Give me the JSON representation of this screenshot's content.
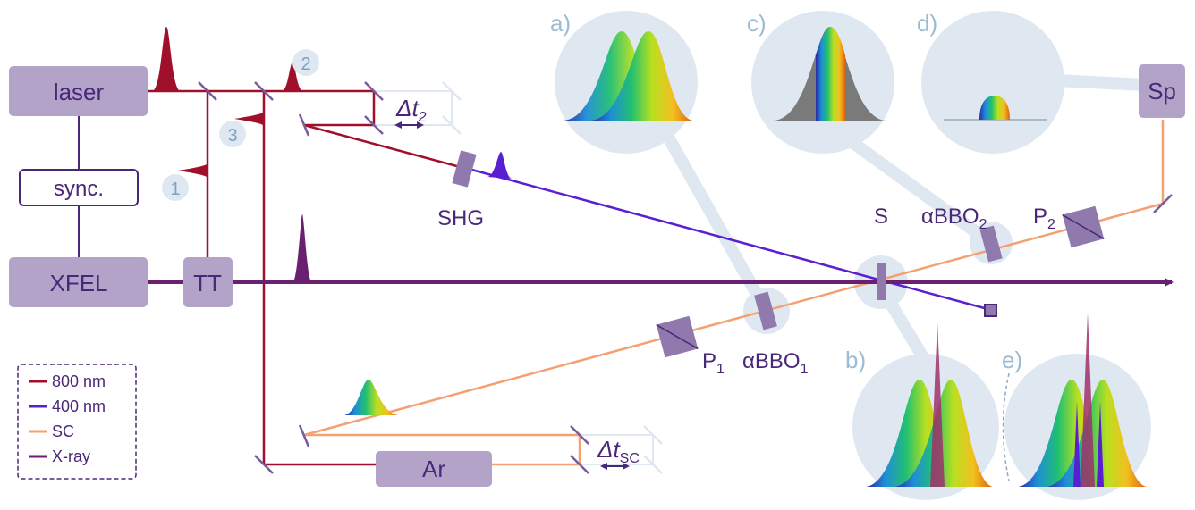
{
  "boxes": {
    "laser": "laser",
    "sync": "sync.",
    "xfel": "XFEL",
    "tt": "TT",
    "ar": "Ar",
    "sp": "Sp"
  },
  "labels": {
    "shg": "SHG",
    "s": "S",
    "abbo1_main": "αBBO",
    "abbo1_sub": "1",
    "abbo2_main": "αBBO",
    "abbo2_sub": "2",
    "p1_main": "P",
    "p1_sub": "1",
    "p2_main": "P",
    "p2_sub": "2",
    "dt2_main": "Δt",
    "dt2_sub": "2",
    "dtsc_main": "Δt",
    "dtsc_sub": "SC"
  },
  "panels": [
    "a)",
    "b)",
    "c)",
    "d)",
    "e)"
  ],
  "markers": [
    "1",
    "2",
    "3"
  ],
  "legend": [
    {
      "label": "800 nm",
      "color": "#a0102a"
    },
    {
      "label": "400 nm",
      "color": "#5a1fd0"
    },
    {
      "label": "SC",
      "color": "#f4a070"
    },
    {
      "label": "X-ray",
      "color": "#6a2070"
    }
  ],
  "colors": {
    "ir": "#a0102a",
    "uv": "#5a1fd0",
    "sc": "#f4a070",
    "xray": "#6a2070",
    "box": "#b3a3c9",
    "circle": "#dfe8f1",
    "label": "#9bbcd2"
  }
}
